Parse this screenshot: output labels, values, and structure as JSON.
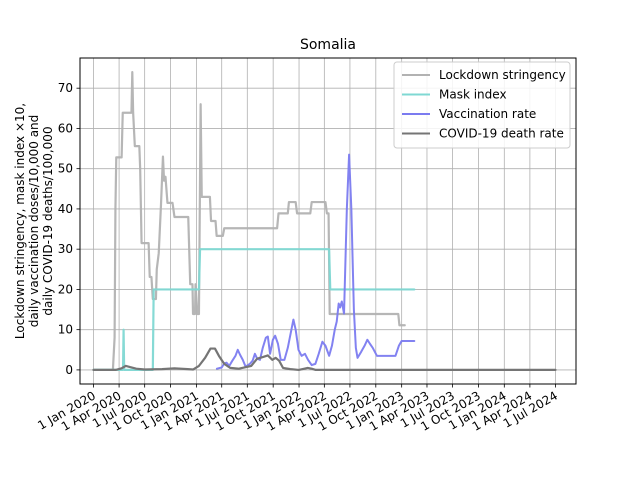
{
  "chart_data": {
    "type": "line",
    "title": "Somalia",
    "ylabel_lines": [
      "Lockdown stringency, mask index ×10,",
      "daily vaccination doses/10,000 and",
      "daily COVID-19 deaths/100,000"
    ],
    "xlabel": "",
    "ylim": [
      -3.5,
      77.5
    ],
    "xlim": [
      "2019-11-14",
      "2024-09-12"
    ],
    "yticks": [
      0,
      10,
      20,
      30,
      40,
      50,
      60,
      70
    ],
    "xticks": [
      {
        "date": "2020-01-01",
        "label": "1 Jan 2020"
      },
      {
        "date": "2020-04-01",
        "label": "1 Apr 2020"
      },
      {
        "date": "2020-07-01",
        "label": "1 Jul 2020"
      },
      {
        "date": "2020-10-01",
        "label": "1 Oct 2020"
      },
      {
        "date": "2021-01-01",
        "label": "1 Jan 2021"
      },
      {
        "date": "2021-04-01",
        "label": "1 Apr 2021"
      },
      {
        "date": "2021-07-01",
        "label": "1 Jul 2021"
      },
      {
        "date": "2021-10-01",
        "label": "1 Oct 2021"
      },
      {
        "date": "2022-01-01",
        "label": "1 Jan 2022"
      },
      {
        "date": "2022-04-01",
        "label": "1 Apr 2022"
      },
      {
        "date": "2022-07-01",
        "label": "1 Jul 2022"
      },
      {
        "date": "2022-10-01",
        "label": "1 Oct 2022"
      },
      {
        "date": "2023-01-01",
        "label": "1 Jan 2023"
      },
      {
        "date": "2023-04-01",
        "label": "1 Apr 2023"
      },
      {
        "date": "2023-07-01",
        "label": "1 Jul 2023"
      },
      {
        "date": "2023-10-01",
        "label": "1 Oct 2023"
      },
      {
        "date": "2024-01-01",
        "label": "1 Jan 2024"
      },
      {
        "date": "2024-04-01",
        "label": "1 Apr 2024"
      },
      {
        "date": "2024-07-01",
        "label": "1 Jul 2024"
      }
    ],
    "grid": true,
    "legend_position": "top-right",
    "series": [
      {
        "name": "Lockdown stringency",
        "color": "#b2b2b2",
        "points": [
          [
            "2020-01-01",
            0
          ],
          [
            "2020-03-10",
            0
          ],
          [
            "2020-03-16",
            8
          ],
          [
            "2020-03-19",
            40
          ],
          [
            "2020-03-22",
            52.8
          ],
          [
            "2020-04-10",
            52.8
          ],
          [
            "2020-04-14",
            63.9
          ],
          [
            "2020-05-15",
            63.9
          ],
          [
            "2020-05-18",
            74
          ],
          [
            "2020-05-21",
            63.9
          ],
          [
            "2020-05-27",
            55.6
          ],
          [
            "2020-06-12",
            55.6
          ],
          [
            "2020-06-15",
            50
          ],
          [
            "2020-06-20",
            31.5
          ],
          [
            "2020-07-15",
            31.5
          ],
          [
            "2020-07-19",
            23.1
          ],
          [
            "2020-07-25",
            23.1
          ],
          [
            "2020-07-30",
            17.6
          ],
          [
            "2020-08-10",
            17.6
          ],
          [
            "2020-08-13",
            25
          ],
          [
            "2020-08-20",
            29
          ],
          [
            "2020-08-28",
            41
          ],
          [
            "2020-09-04",
            53
          ],
          [
            "2020-09-08",
            47
          ],
          [
            "2020-09-13",
            48
          ],
          [
            "2020-09-20",
            41.5
          ],
          [
            "2020-10-08",
            41.5
          ],
          [
            "2020-10-15",
            38
          ],
          [
            "2020-12-03",
            38
          ],
          [
            "2020-12-10",
            21.3
          ],
          [
            "2020-12-18",
            21.3
          ],
          [
            "2020-12-20",
            13.9
          ],
          [
            "2020-12-27",
            13.9
          ],
          [
            "2020-12-29",
            21.3
          ],
          [
            "2021-01-04",
            13.9
          ],
          [
            "2021-01-10",
            13.9
          ],
          [
            "2021-01-16",
            66
          ],
          [
            "2021-01-20",
            43
          ],
          [
            "2021-02-18",
            43
          ],
          [
            "2021-02-22",
            37
          ],
          [
            "2021-03-10",
            37
          ],
          [
            "2021-03-14",
            33.3
          ],
          [
            "2021-04-05",
            33.3
          ],
          [
            "2021-04-10",
            35.2
          ],
          [
            "2021-10-15",
            35.2
          ],
          [
            "2021-10-20",
            38.9
          ],
          [
            "2021-11-22",
            38.9
          ],
          [
            "2021-11-26",
            41.7
          ],
          [
            "2021-12-20",
            41.7
          ],
          [
            "2021-12-25",
            38.9
          ],
          [
            "2022-02-10",
            38.9
          ],
          [
            "2022-02-15",
            41.7
          ],
          [
            "2022-04-05",
            41.7
          ],
          [
            "2022-04-10",
            38.9
          ],
          [
            "2022-04-16",
            38.9
          ],
          [
            "2022-04-20",
            13.9
          ],
          [
            "2022-12-20",
            13.9
          ],
          [
            "2022-12-24",
            11.1
          ],
          [
            "2023-01-12",
            11.1
          ]
        ]
      },
      {
        "name": "Mask index",
        "color": "#7fd8d3",
        "points": [
          [
            "2020-01-01",
            0
          ],
          [
            "2020-04-15",
            0
          ],
          [
            "2020-04-17",
            10
          ],
          [
            "2020-04-19",
            0
          ],
          [
            "2020-07-30",
            0
          ],
          [
            "2020-08-02",
            20
          ],
          [
            "2021-01-10",
            20
          ],
          [
            "2021-01-14",
            30
          ],
          [
            "2022-04-18",
            30
          ],
          [
            "2022-04-22",
            20
          ],
          [
            "2023-02-15",
            20
          ]
        ]
      },
      {
        "name": "Vaccination rate",
        "color": "#7b7bf0",
        "points": [
          [
            "2021-03-15",
            0.3
          ],
          [
            "2021-04-01",
            0.6
          ],
          [
            "2021-04-10",
            1.6
          ],
          [
            "2021-04-18",
            1.8
          ],
          [
            "2021-04-28",
            1.0
          ],
          [
            "2021-05-08",
            2.2
          ],
          [
            "2021-05-20",
            3.5
          ],
          [
            "2021-05-28",
            5.0
          ],
          [
            "2021-06-05",
            3.8
          ],
          [
            "2021-06-15",
            2.5
          ],
          [
            "2021-06-25",
            0.8
          ],
          [
            "2021-07-10",
            1.5
          ],
          [
            "2021-07-20",
            2.3
          ],
          [
            "2021-07-28",
            4.0
          ],
          [
            "2021-08-05",
            2.8
          ],
          [
            "2021-08-15",
            2.5
          ],
          [
            "2021-08-25",
            5.5
          ],
          [
            "2021-09-05",
            8.0
          ],
          [
            "2021-09-12",
            8.3
          ],
          [
            "2021-09-20",
            4.0
          ],
          [
            "2021-09-30",
            7.5
          ],
          [
            "2021-10-08",
            8.5
          ],
          [
            "2021-10-18",
            6.5
          ],
          [
            "2021-10-28",
            2.5
          ],
          [
            "2021-11-10",
            2.5
          ],
          [
            "2021-11-22",
            5.5
          ],
          [
            "2021-12-02",
            9.0
          ],
          [
            "2021-12-12",
            12.5
          ],
          [
            "2021-12-20",
            10.0
          ],
          [
            "2021-12-30",
            5.0
          ],
          [
            "2022-01-10",
            3.5
          ],
          [
            "2022-01-22",
            4.0
          ],
          [
            "2022-02-02",
            2.5
          ],
          [
            "2022-02-15",
            1.2
          ],
          [
            "2022-02-28",
            1.5
          ],
          [
            "2022-03-12",
            4.0
          ],
          [
            "2022-03-25",
            7.0
          ],
          [
            "2022-04-05",
            6.0
          ],
          [
            "2022-04-18",
            3.5
          ],
          [
            "2022-04-28",
            6.0
          ],
          [
            "2022-05-08",
            10.0
          ],
          [
            "2022-05-15",
            12.0
          ],
          [
            "2022-05-22",
            16.5
          ],
          [
            "2022-05-27",
            15.5
          ],
          [
            "2022-06-02",
            17.0
          ],
          [
            "2022-06-10",
            14.0
          ],
          [
            "2022-06-20",
            40.0
          ],
          [
            "2022-06-28",
            53.5
          ],
          [
            "2022-07-06",
            40.0
          ],
          [
            "2022-07-15",
            15.0
          ],
          [
            "2022-07-22",
            5.5
          ],
          [
            "2022-07-28",
            3.0
          ],
          [
            "2022-08-10",
            4.5
          ],
          [
            "2022-08-22",
            6.0
          ],
          [
            "2022-09-01",
            7.5
          ],
          [
            "2022-09-10",
            6.5
          ],
          [
            "2022-09-20",
            5.5
          ],
          [
            "2022-10-05",
            3.5
          ],
          [
            "2022-11-20",
            3.5
          ],
          [
            "2022-12-10",
            3.5
          ],
          [
            "2022-12-22",
            6.0
          ],
          [
            "2023-01-01",
            7.2
          ],
          [
            "2023-02-15",
            7.2
          ]
        ]
      },
      {
        "name": "COVID-19 death rate",
        "color": "#757575",
        "points": [
          [
            "2020-01-01",
            0
          ],
          [
            "2020-03-20",
            0
          ],
          [
            "2020-04-10",
            0.4
          ],
          [
            "2020-04-25",
            1.0
          ],
          [
            "2020-05-10",
            0.7
          ],
          [
            "2020-06-01",
            0.3
          ],
          [
            "2020-07-01",
            0.1
          ],
          [
            "2020-09-01",
            0.2
          ],
          [
            "2020-10-15",
            0.4
          ],
          [
            "2020-12-01",
            0.2
          ],
          [
            "2020-12-20",
            0.1
          ],
          [
            "2021-01-10",
            1.0
          ],
          [
            "2021-02-01",
            3.0
          ],
          [
            "2021-02-20",
            5.3
          ],
          [
            "2021-03-08",
            5.3
          ],
          [
            "2021-03-22",
            3.5
          ],
          [
            "2021-04-10",
            1.5
          ],
          [
            "2021-05-01",
            0.5
          ],
          [
            "2021-06-01",
            0.3
          ],
          [
            "2021-07-15",
            1.0
          ],
          [
            "2021-08-05",
            2.8
          ],
          [
            "2021-08-25",
            3.2
          ],
          [
            "2021-09-12",
            3.6
          ],
          [
            "2021-09-28",
            2.5
          ],
          [
            "2021-10-10",
            3.0
          ],
          [
            "2021-10-22",
            2.3
          ],
          [
            "2021-11-05",
            0.5
          ],
          [
            "2021-12-01",
            0.2
          ],
          [
            "2021-12-31",
            0.0
          ],
          [
            "2022-02-01",
            0.5
          ],
          [
            "2022-02-15",
            0.3
          ],
          [
            "2022-03-01",
            0.0
          ],
          [
            "2024-07-01",
            0.0
          ]
        ]
      }
    ]
  }
}
